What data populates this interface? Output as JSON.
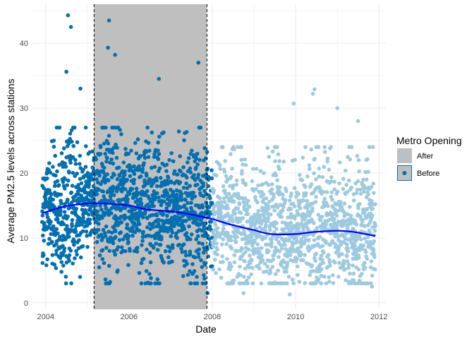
{
  "chart_data": {
    "type": "scatter",
    "xlabel": "Date",
    "ylabel": "Average PM2.5 levels across stations",
    "x_ticks": [
      "2004",
      "2006",
      "2008",
      "2010",
      "2012"
    ],
    "y_ticks": [
      "0",
      "10",
      "20",
      "30",
      "40"
    ],
    "xlim": [
      "2003-09-01",
      "2012-03-01"
    ],
    "ylim": [
      -1,
      46
    ],
    "grid": true,
    "legend": {
      "title": "Metro Opening",
      "placement": "right",
      "entries": [
        {
          "label": "After",
          "color": "#9ecae1"
        },
        {
          "label": "Before",
          "color": "#0570b0"
        }
      ]
    },
    "shaded_period": {
      "start": "2005-03-01",
      "end": "2007-11-15",
      "color": "#bfbfbf"
    },
    "vertical_lines": [
      "2005-03-01",
      "2007-11-15"
    ],
    "series": [
      {
        "name": "Before",
        "color": "#0570b0",
        "date_range": [
          "2003-12-01",
          "2007-12-31"
        ],
        "approx_points": 1400,
        "typical_range": [
          3,
          27
        ],
        "outliers": [
          {
            "x": "2004-07-15",
            "y": 44.3
          },
          {
            "x": "2004-08-10",
            "y": 42.5
          },
          {
            "x": "2005-07-10",
            "y": 43.5
          },
          {
            "x": "2005-07-01",
            "y": 39.3
          },
          {
            "x": "2005-09-01",
            "y": 38.2
          },
          {
            "x": "2004-07-01",
            "y": 35.6
          },
          {
            "x": "2007-09-01",
            "y": 37.0
          },
          {
            "x": "2006-09-20",
            "y": 34.5
          },
          {
            "x": "2004-11-01",
            "y": 33.0
          },
          {
            "x": "2007-11-20",
            "y": 1.5
          }
        ]
      },
      {
        "name": "After",
        "color": "#9ecae1",
        "date_range": [
          "2008-01-01",
          "2011-11-30"
        ],
        "approx_points": 1300,
        "typical_range": [
          3,
          24
        ],
        "outliers": [
          {
            "x": "2010-06-15",
            "y": 32.9
          },
          {
            "x": "2010-06-01",
            "y": 32.2
          },
          {
            "x": "2009-12-15",
            "y": 30.7
          },
          {
            "x": "2011-01-01",
            "y": 30.0
          },
          {
            "x": "2011-07-01",
            "y": 28.0
          },
          {
            "x": "2008-10-01",
            "y": 1.5
          },
          {
            "x": "2009-11-10",
            "y": 1.3
          },
          {
            "x": "2011-11-01",
            "y": 2.5
          }
        ]
      }
    ],
    "trend_line": {
      "color": "#0000ff",
      "x": [
        "2003-12-01",
        "2004-06-01",
        "2005-01-01",
        "2005-06-01",
        "2006-01-01",
        "2006-06-01",
        "2007-01-01",
        "2007-06-01",
        "2008-01-01",
        "2008-06-01",
        "2009-01-01",
        "2009-06-01",
        "2010-01-01",
        "2010-06-01",
        "2011-01-01",
        "2011-06-01",
        "2011-11-30"
      ],
      "y": [
        13.8,
        14.8,
        15.3,
        15.3,
        15.0,
        14.4,
        14.1,
        13.7,
        12.9,
        12.1,
        11.2,
        10.6,
        10.6,
        10.9,
        11.1,
        10.9,
        10.3
      ]
    }
  }
}
